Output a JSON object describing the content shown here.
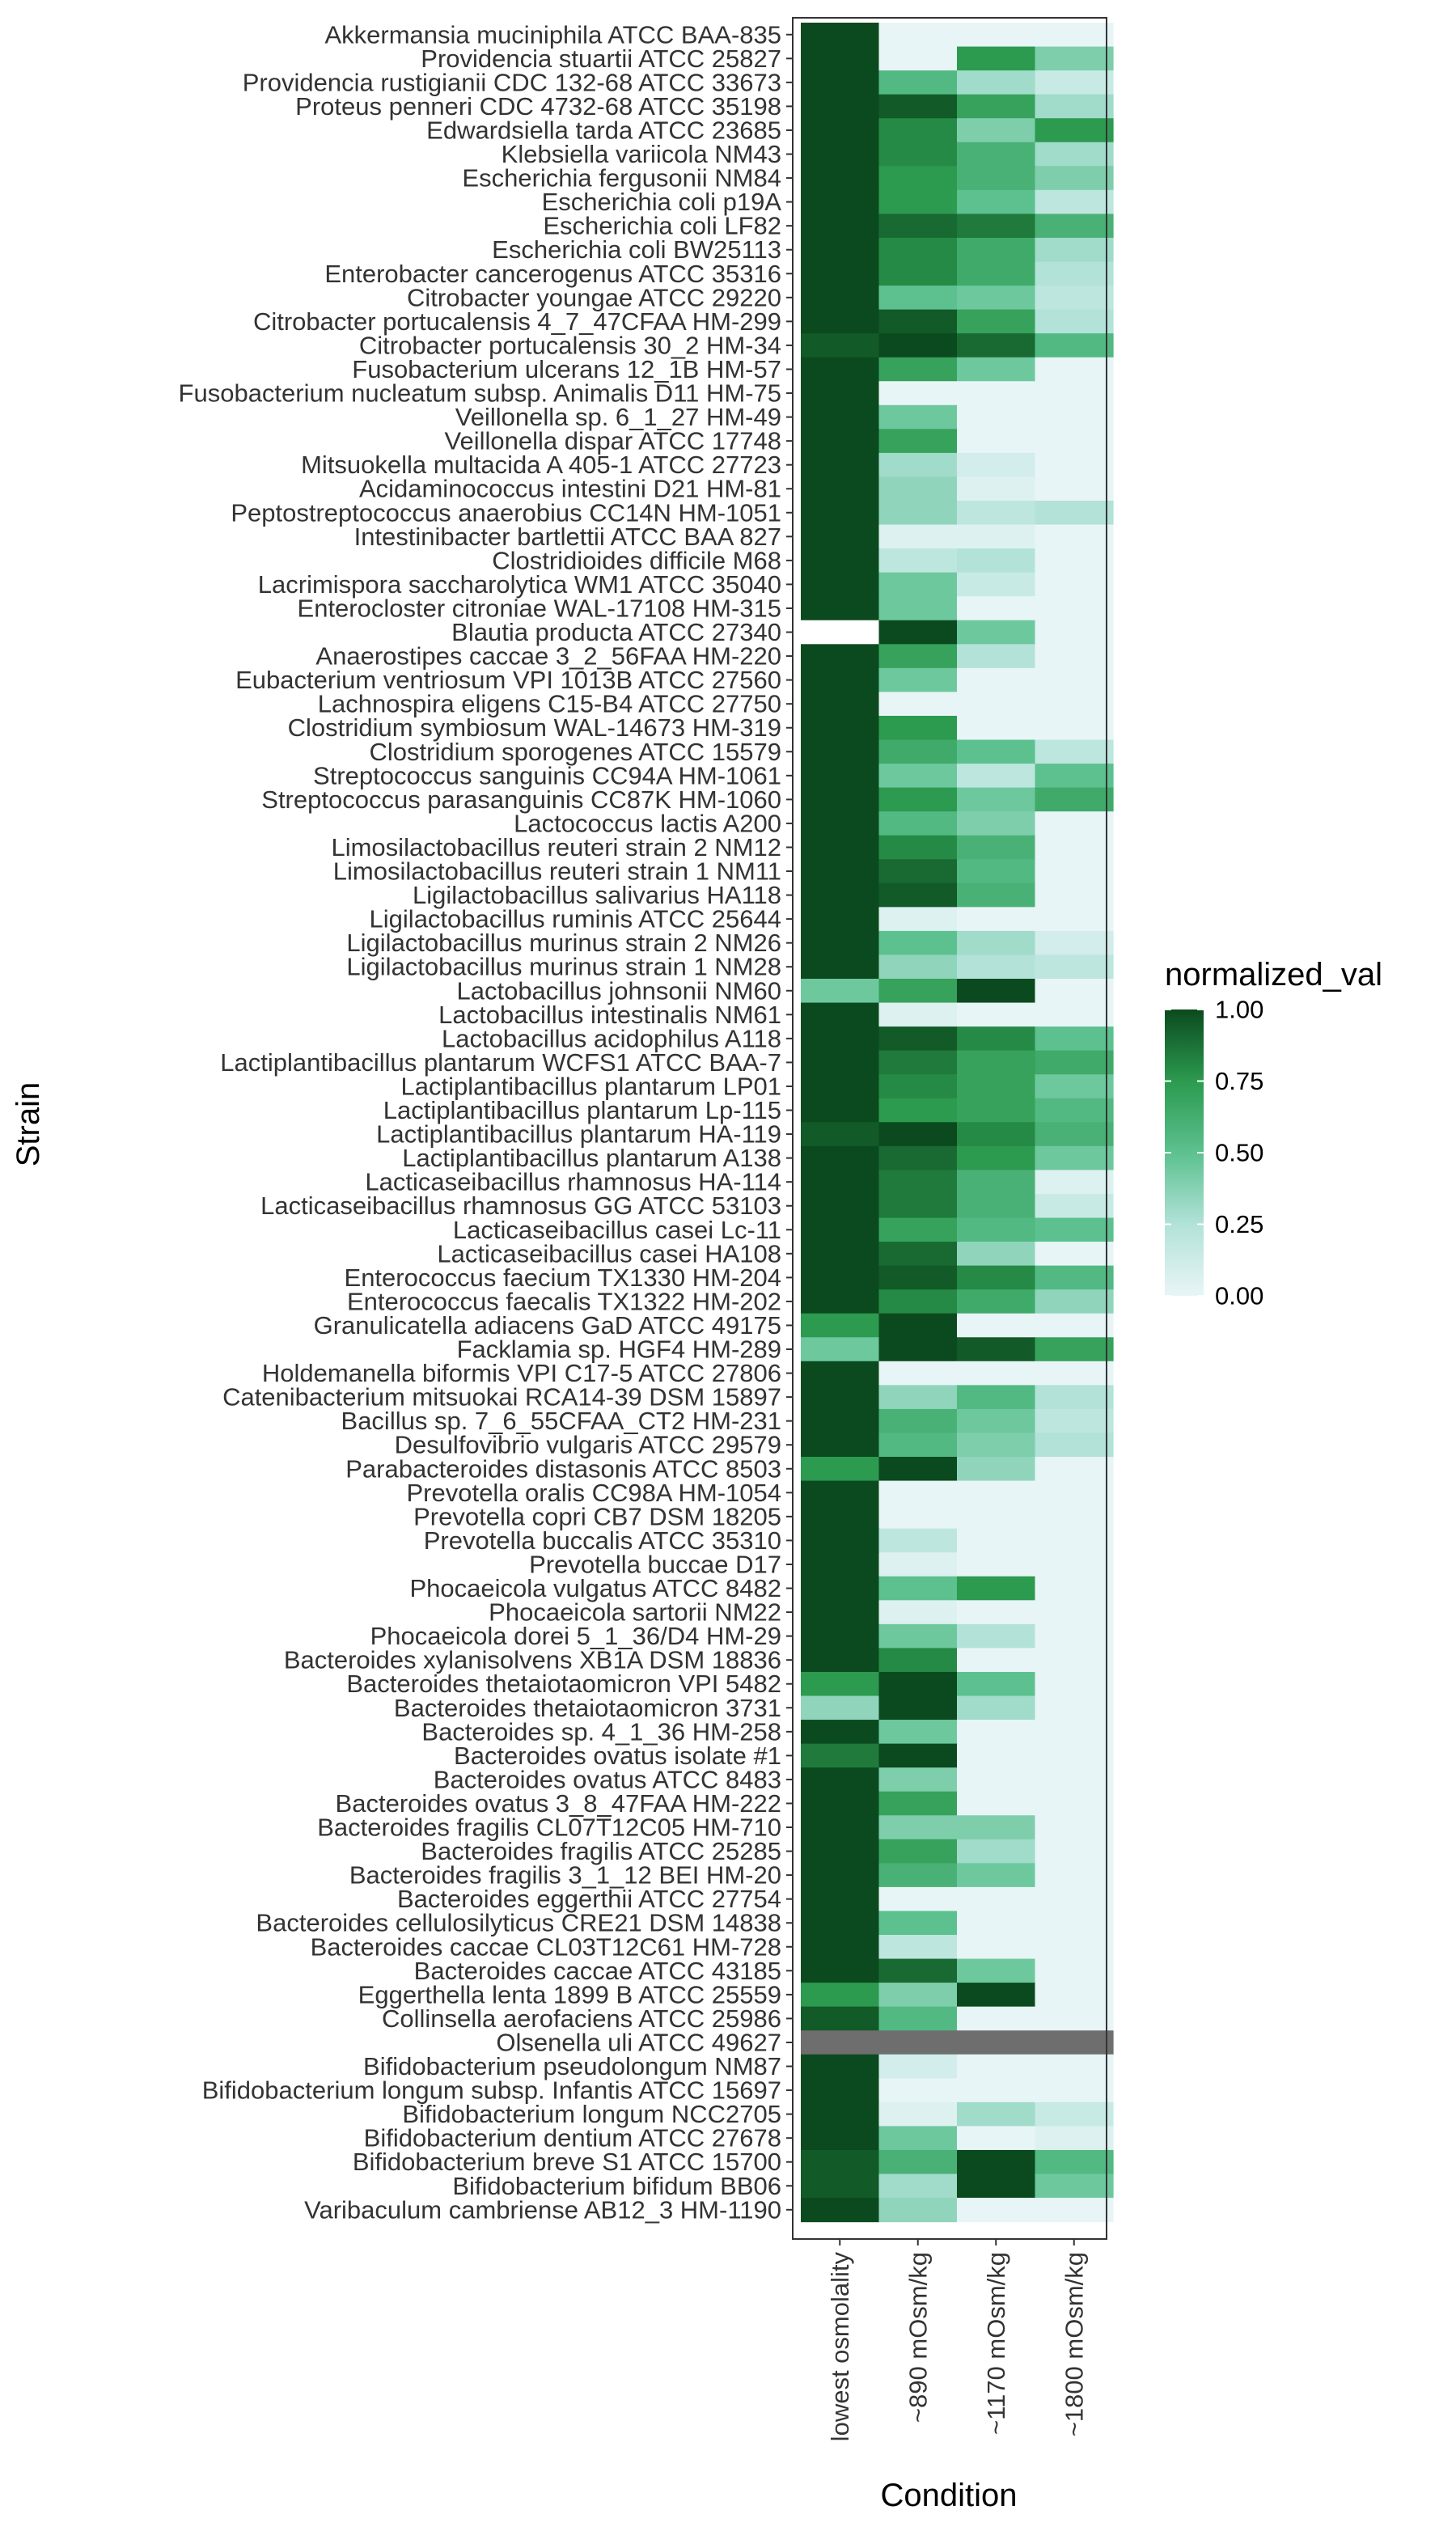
{
  "chart_data": {
    "type": "heatmap",
    "xlabel": "Condition",
    "ylabel": "Strain",
    "x": [
      "lowest osmolality",
      "~890 mOsm/kg",
      "~1170 mOsm/kg",
      "~1800 mOsm/kg"
    ],
    "y": [
      "Akkermansia muciniphila ATCC BAA-835",
      "Providencia stuartii ATCC 25827",
      "Providencia rustigianii CDC 132-68 ATCC 33673",
      "Proteus penneri CDC 4732-68 ATCC 35198",
      "Edwardsiella tarda ATCC 23685",
      "Klebsiella variicola NM43",
      "Escherichia fergusonii NM84",
      "Escherichia coli p19A",
      "Escherichia coli LF82",
      "Escherichia coli BW25113",
      "Enterobacter cancerogenus ATCC 35316",
      "Citrobacter youngae ATCC 29220",
      "Citrobacter portucalensis 4_7_47CFAA HM-299",
      "Citrobacter portucalensis 30_2 HM-34",
      "Fusobacterium ulcerans 12_1B HM-57",
      "Fusobacterium nucleatum subsp. Animalis D11 HM-75",
      "Veillonella sp. 6_1_27 HM-49",
      "Veillonella dispar ATCC 17748",
      "Mitsuokella multacida A 405-1 ATCC 27723",
      "Acidaminococcus intestini D21 HM-81",
      "Peptostreptococcus anaerobius CC14N HM-1051",
      "Intestinibacter bartlettii ATCC BAA 827",
      "Clostridioides difficile M68",
      "Lacrimispora saccharolytica WM1 ATCC 35040",
      "Enterocloster citroniae WAL-17108 HM-315",
      "Blautia producta ATCC 27340",
      "Anaerostipes caccae 3_2_56FAA HM-220",
      "Eubacterium ventriosum VPI 1013B ATCC 27560",
      "Lachnospira eligens C15-B4 ATCC 27750",
      "Clostridium symbiosum WAL-14673 HM-319",
      "Clostridium sporogenes ATCC 15579",
      "Streptococcus sanguinis CC94A HM-1061",
      "Streptococcus parasanguinis CC87K HM-1060",
      "Lactococcus lactis A200",
      "Limosilactobacillus reuteri strain 2 NM12",
      "Limosilactobacillus reuteri strain 1 NM11",
      "Ligilactobacillus salivarius HA118",
      "Ligilactobacillus ruminis ATCC 25644",
      "Ligilactobacillus murinus strain 2 NM26",
      "Ligilactobacillus murinus strain 1 NM28",
      "Lactobacillus johnsonii NM60",
      "Lactobacillus intestinalis NM61",
      "Lactobacillus acidophilus A118",
      "Lactiplantibacillus plantarum WCFS1 ATCC BAA-7",
      "Lactiplantibacillus plantarum LP01",
      "Lactiplantibacillus plantarum Lp-115",
      "Lactiplantibacillus plantarum HA-119",
      "Lactiplantibacillus plantarum A138",
      "Lacticaseibacillus rhamnosus HA-114",
      "Lacticaseibacillus rhamnosus GG ATCC 53103",
      "Lacticaseibacillus casei Lc-11",
      "Lacticaseibacillus casei HA108",
      "Enterococcus faecium TX1330 HM-204",
      "Enterococcus faecalis TX1322 HM-202",
      "Granulicatella adiacens GaD ATCC 49175",
      "Facklamia sp. HGF4 HM-289",
      "Holdemanella biformis VPI C17-5 ATCC 27806",
      "Catenibacterium mitsuokai RCA14-39 DSM 15897",
      "Bacillus sp. 7_6_55CFAA_CT2 HM-231",
      "Desulfovibrio vulgaris ATCC 29579",
      "Parabacteroides distasonis ATCC 8503",
      "Prevotella oralis CC98A HM-1054",
      "Prevotella copri CB7 DSM 18205",
      "Prevotella buccalis ATCC 35310",
      "Prevotella buccae D17",
      "Phocaeicola vulgatus ATCC 8482",
      "Phocaeicola sartorii NM22",
      "Phocaeicola dorei 5_1_36/D4 HM-29",
      "Bacteroides xylanisolvens XB1A DSM 18836",
      "Bacteroides thetaiotaomicron VPI 5482",
      "Bacteroides thetaiotaomicron 3731",
      "Bacteroides sp. 4_1_36 HM-258",
      "Bacteroides ovatus isolate #1",
      "Bacteroides ovatus ATCC 8483",
      "Bacteroides ovatus 3_8_47FAA HM-222",
      "Bacteroides fragilis CL07T12C05 HM-710",
      "Bacteroides fragilis ATCC 25285",
      "Bacteroides fragilis 3_1_12 BEI HM-20",
      "Bacteroides eggerthii ATCC 27754",
      "Bacteroides cellulosilyticus CRE21 DSM 14838",
      "Bacteroides caccae CL03T12C61 HM-728",
      "Bacteroides caccae ATCC 43185",
      "Eggerthella lenta 1899 B ATCC 25559",
      "Collinsella aerofaciens ATCC 25986",
      "Olsenella uli ATCC 49627",
      "Bifidobacterium pseudolongum NM87",
      "Bifidobacterium longum subsp. Infantis ATCC 15697",
      "Bifidobacterium longum NCC2705",
      "Bifidobacterium dentium ATCC 27678",
      "Bifidobacterium breve S1 ATCC 15700",
      "Bifidobacterium bifidum BB06",
      "Varibaculum cambriense AB12_3 HM-1190"
    ],
    "values": [
      [
        1,
        0,
        0,
        0
      ],
      [
        1,
        0,
        0.75,
        0.4
      ],
      [
        1,
        0.55,
        0.3,
        0.15
      ],
      [
        1,
        0.95,
        0.7,
        0.3
      ],
      [
        1,
        0.8,
        0.4,
        0.75
      ],
      [
        1,
        0.8,
        0.6,
        0.3
      ],
      [
        1,
        0.75,
        0.6,
        0.4
      ],
      [
        1,
        0.75,
        0.5,
        0.2
      ],
      [
        1,
        0.9,
        0.85,
        0.6
      ],
      [
        1,
        0.8,
        0.65,
        0.3
      ],
      [
        1,
        0.8,
        0.65,
        0.25
      ],
      [
        1,
        0.5,
        0.45,
        0.2
      ],
      [
        1,
        0.95,
        0.7,
        0.25
      ],
      [
        0.95,
        1,
        0.9,
        0.55
      ],
      [
        1,
        0.7,
        0.45,
        0
      ],
      [
        1,
        0,
        0,
        0
      ],
      [
        1,
        0.45,
        0,
        0
      ],
      [
        1,
        0.7,
        0,
        0
      ],
      [
        1,
        0.3,
        0.1,
        0
      ],
      [
        1,
        0.35,
        0.05,
        0
      ],
      [
        1,
        0.35,
        0.2,
        0.25
      ],
      [
        1,
        0.05,
        0.05,
        0
      ],
      [
        1,
        0.2,
        0.25,
        0
      ],
      [
        1,
        0.45,
        0.15,
        0
      ],
      [
        1,
        0.45,
        0,
        0
      ],
      [
        null,
        1,
        0.45,
        0
      ],
      [
        1,
        0.7,
        0.25,
        0
      ],
      [
        1,
        0.45,
        0,
        0
      ],
      [
        1,
        0,
        0,
        0
      ],
      [
        1,
        0.75,
        0,
        0
      ],
      [
        1,
        0.65,
        0.5,
        0.2
      ],
      [
        1,
        0.45,
        0.2,
        0.5
      ],
      [
        1,
        0.75,
        0.45,
        0.65
      ],
      [
        1,
        0.55,
        0.4,
        0
      ],
      [
        1,
        0.8,
        0.6,
        0
      ],
      [
        1,
        0.9,
        0.55,
        0
      ],
      [
        1,
        0.95,
        0.6,
        0
      ],
      [
        1,
        0.05,
        0,
        0
      ],
      [
        1,
        0.5,
        0.3,
        0.1
      ],
      [
        1,
        0.35,
        0.25,
        0.2
      ],
      [
        0.45,
        0.7,
        1,
        0
      ],
      [
        1,
        0.05,
        0,
        0
      ],
      [
        1,
        0.95,
        0.8,
        0.5
      ],
      [
        1,
        0.85,
        0.7,
        0.65
      ],
      [
        1,
        0.8,
        0.7,
        0.45
      ],
      [
        1,
        0.75,
        0.7,
        0.55
      ],
      [
        0.95,
        1,
        0.8,
        0.6
      ],
      [
        1,
        0.9,
        0.75,
        0.45
      ],
      [
        1,
        0.85,
        0.6,
        0.05
      ],
      [
        1,
        0.85,
        0.6,
        0.15
      ],
      [
        1,
        0.7,
        0.55,
        0.5
      ],
      [
        1,
        0.9,
        0.35,
        0
      ],
      [
        1,
        0.95,
        0.8,
        0.55
      ],
      [
        1,
        0.8,
        0.65,
        0.35
      ],
      [
        0.75,
        1,
        0,
        0
      ],
      [
        0.45,
        1,
        0.95,
        0.7
      ],
      [
        1,
        0,
        0,
        0
      ],
      [
        1,
        0.35,
        0.55,
        0.25
      ],
      [
        1,
        0.6,
        0.45,
        0.2
      ],
      [
        1,
        0.55,
        0.4,
        0.25
      ],
      [
        0.75,
        1,
        0.35,
        0
      ],
      [
        1,
        0,
        0,
        0
      ],
      [
        1,
        0,
        0,
        0
      ],
      [
        1,
        0.2,
        0,
        0
      ],
      [
        1,
        0.05,
        0,
        0
      ],
      [
        1,
        0.5,
        0.75,
        0
      ],
      [
        1,
        0.05,
        0,
        0
      ],
      [
        1,
        0.45,
        0.25,
        0
      ],
      [
        1,
        0.8,
        0,
        0
      ],
      [
        0.75,
        1,
        0.5,
        0
      ],
      [
        0.35,
        1,
        0.3,
        0
      ],
      [
        1,
        0.45,
        0,
        0
      ],
      [
        0.85,
        1,
        0,
        0
      ],
      [
        1,
        0.4,
        0,
        0
      ],
      [
        1,
        0.7,
        0,
        0
      ],
      [
        1,
        0.4,
        0.4,
        0
      ],
      [
        1,
        0.7,
        0.3,
        0
      ],
      [
        1,
        0.6,
        0.45,
        0
      ],
      [
        1,
        0,
        0,
        0
      ],
      [
        1,
        0.5,
        0,
        0
      ],
      [
        1,
        0.2,
        0,
        0
      ],
      [
        1,
        0.9,
        0.45,
        0
      ],
      [
        0.75,
        0.4,
        1,
        0
      ],
      [
        0.95,
        0.55,
        0,
        0
      ],
      [
        null,
        null,
        null,
        null
      ],
      [
        1,
        0.1,
        0,
        0
      ],
      [
        1,
        0,
        0,
        0
      ],
      [
        1,
        0.05,
        0.3,
        0.15
      ],
      [
        1,
        0.45,
        0,
        0.05
      ],
      [
        0.95,
        0.6,
        1,
        0.55
      ],
      [
        0.95,
        0.3,
        1,
        0.45
      ],
      [
        1,
        0.35,
        0,
        0
      ]
    ],
    "legend": {
      "title": "normalized_val",
      "ticks": [
        "1.00",
        "0.75",
        "0.50",
        "0.25",
        "0.00"
      ],
      "tick_values": [
        1,
        0.75,
        0.5,
        0.25,
        0
      ],
      "placement": "right"
    },
    "colorscale": {
      "stops": [
        {
          "v": 0.0,
          "color": "#e8f5f7"
        },
        {
          "v": 0.25,
          "color": "#b2e2d8"
        },
        {
          "v": 0.5,
          "color": "#5cc18f"
        },
        {
          "v": 0.75,
          "color": "#2c9a4f"
        },
        {
          "v": 1.0,
          "color": "#0b4a1e"
        }
      ],
      "na_color": "#6e6e6e",
      "blank_color": "#ffffff"
    },
    "value_range": [
      0,
      1
    ],
    "grid": true,
    "panel_border": "#333333"
  }
}
